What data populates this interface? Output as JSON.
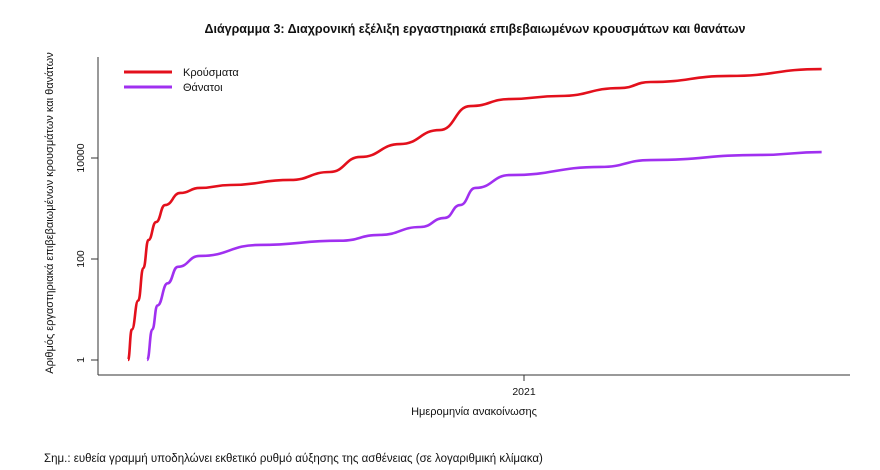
{
  "chart_data": {
    "type": "line",
    "title": "Διάγραμμα 3: Διαχρονική εξέλιξη εργαστηριακά επιβεβαιωμένων κρουσμάτων και θανάτων",
    "xlabel": "Ημερομηνία ανακοίνωσης",
    "ylabel": "Αριθμός εργαστηριακά επιβεβαιωμένων κρουσμάτων και θανάτων",
    "yscale": "log",
    "ylim": [
      0.6,
      1200000
    ],
    "xlim": [
      "2020-02-03",
      "2021-09-15"
    ],
    "y_ticks": [
      {
        "value": 1,
        "label": "1"
      },
      {
        "value": 100,
        "label": "100"
      },
      {
        "value": 10000,
        "label": "10000"
      }
    ],
    "x_ticks": [
      {
        "date": "2021-01-01",
        "label": "2021"
      }
    ],
    "grid": false,
    "legend_position": "top-left",
    "series": [
      {
        "name": "Κρούσματα",
        "color": "#e3101c",
        "points": [
          [
            "2020-02-26",
            1
          ],
          [
            "2020-02-29",
            4
          ],
          [
            "2020-03-05",
            15
          ],
          [
            "2020-03-09",
            66
          ],
          [
            "2020-03-13",
            238
          ],
          [
            "2020-03-19",
            540
          ],
          [
            "2020-03-26",
            1170
          ],
          [
            "2020-04-07",
            2030
          ],
          [
            "2020-04-22",
            2550
          ],
          [
            "2020-05-16",
            2920
          ],
          [
            "2020-07-02",
            3670
          ],
          [
            "2020-08-02",
            5280
          ],
          [
            "2020-08-26",
            10500
          ],
          [
            "2020-09-26",
            18900
          ],
          [
            "2020-10-27",
            35800
          ],
          [
            "2020-11-20",
            107000
          ],
          [
            "2020-12-21",
            147000
          ],
          [
            "2021-01-29",
            169000
          ],
          [
            "2021-03-17",
            243000
          ],
          [
            "2021-04-10",
            320000
          ],
          [
            "2021-06-11",
            421000
          ],
          [
            "2021-08-22",
            578000
          ]
        ]
      },
      {
        "name": "Θάνατοι",
        "color": "#a030f0",
        "points": [
          [
            "2020-03-12",
            1
          ],
          [
            "2020-03-16",
            4
          ],
          [
            "2020-03-20",
            12
          ],
          [
            "2020-03-28",
            33
          ],
          [
            "2020-04-05",
            70
          ],
          [
            "2020-04-22",
            115
          ],
          [
            "2020-06-08",
            190
          ],
          [
            "2020-08-10",
            230
          ],
          [
            "2020-09-10",
            300
          ],
          [
            "2020-10-12",
            430
          ],
          [
            "2020-10-31",
            650
          ],
          [
            "2020-11-12",
            1170
          ],
          [
            "2020-11-24",
            2550
          ],
          [
            "2020-12-21",
            4600
          ],
          [
            "2021-03-02",
            6640
          ],
          [
            "2021-04-10",
            9120
          ],
          [
            "2021-07-05",
            11500
          ],
          [
            "2021-08-22",
            13100
          ]
        ]
      }
    ]
  },
  "note": "Σημ.: ευθεία γραμμή υποδηλώνει εκθετικό ρυθμό αύξησης της ασθένειας (σε λογαριθμική κλίμακα)"
}
